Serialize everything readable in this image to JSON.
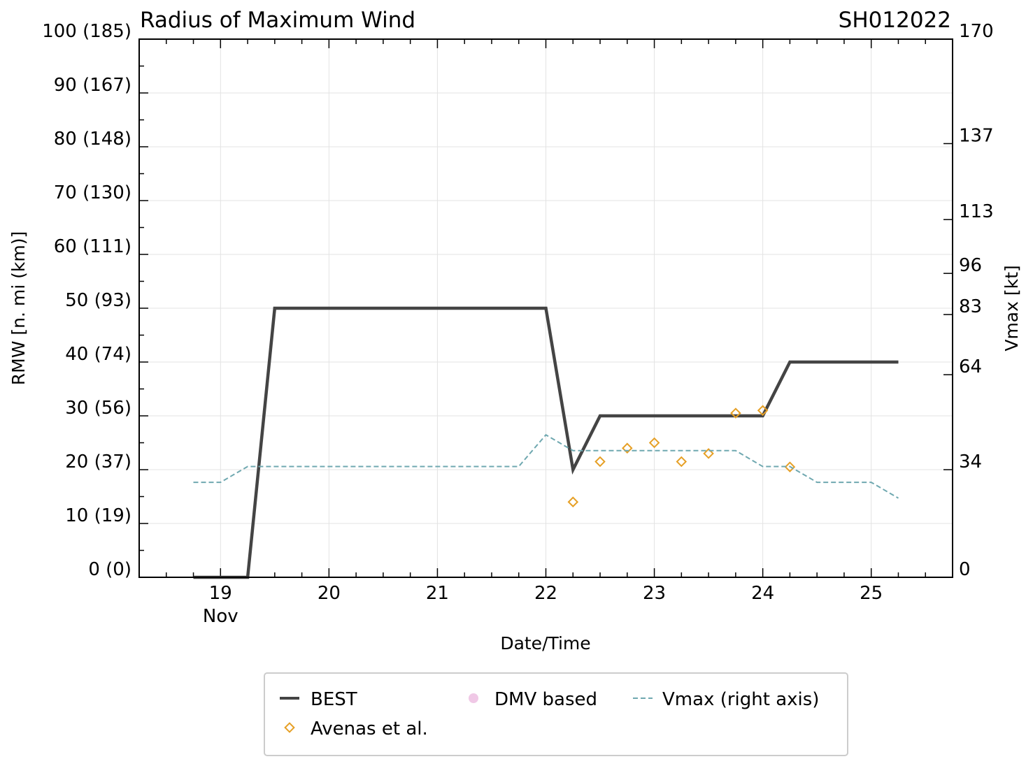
{
  "chart_data": {
    "type": "line",
    "title": "Radius of Maximum Wind",
    "storm_id": "SH012022",
    "xlabel": "Date/Time",
    "ylabel": "RMW [n. mi (km)]",
    "y2label": "Vmax [kt]",
    "x_range": [
      18.25,
      25.75
    ],
    "ylim": [
      0,
      100
    ],
    "y2lim": [
      0,
      170
    ],
    "x_ticks": [
      {
        "value": 19,
        "label": "19",
        "sublabel": "Nov"
      },
      {
        "value": 20,
        "label": "20",
        "sublabel": ""
      },
      {
        "value": 21,
        "label": "21",
        "sublabel": ""
      },
      {
        "value": 22,
        "label": "22",
        "sublabel": ""
      },
      {
        "value": 23,
        "label": "23",
        "sublabel": ""
      },
      {
        "value": 24,
        "label": "24",
        "sublabel": ""
      },
      {
        "value": 25,
        "label": "25",
        "sublabel": ""
      }
    ],
    "y_ticks": [
      {
        "value": 0,
        "label": "0 (0)"
      },
      {
        "value": 10,
        "label": "10 (19)"
      },
      {
        "value": 20,
        "label": "20 (37)"
      },
      {
        "value": 30,
        "label": "30 (56)"
      },
      {
        "value": 40,
        "label": "40 (74)"
      },
      {
        "value": 50,
        "label": "50 (93)"
      },
      {
        "value": 60,
        "label": "60 (111)"
      },
      {
        "value": 70,
        "label": "70 (130)"
      },
      {
        "value": 80,
        "label": "80 (148)"
      },
      {
        "value": 90,
        "label": "90 (167)"
      },
      {
        "value": 100,
        "label": "100 (185)"
      }
    ],
    "y2_ticks": [
      {
        "value": 0,
        "label": "0"
      },
      {
        "value": 34,
        "label": "34"
      },
      {
        "value": 64,
        "label": "64"
      },
      {
        "value": 83,
        "label": "83"
      },
      {
        "value": 96,
        "label": "96"
      },
      {
        "value": 113,
        "label": "113"
      },
      {
        "value": 137,
        "label": "137"
      },
      {
        "value": 170,
        "label": "170"
      }
    ],
    "series": [
      {
        "name": "BEST",
        "kind": "line",
        "color": "#444444",
        "x": [
          18.75,
          19.0,
          19.25,
          19.5,
          19.75,
          20.0,
          20.5,
          21.0,
          21.5,
          22.0,
          22.25,
          22.5,
          23.0,
          23.5,
          24.0,
          24.25,
          24.5,
          25.0,
          25.25
        ],
        "y": [
          0,
          0,
          0,
          50,
          50,
          50,
          50,
          50,
          50,
          50,
          20,
          30,
          30,
          30,
          30,
          40,
          40,
          40,
          40
        ]
      },
      {
        "name": "Avenas et al.",
        "kind": "scatter",
        "color": "#e69f24",
        "x": [
          22.25,
          22.5,
          22.75,
          23.0,
          23.25,
          23.5,
          23.75,
          24.0,
          24.25
        ],
        "y": [
          14,
          21.5,
          24,
          25,
          21.5,
          23,
          30.5,
          31,
          20.5
        ]
      },
      {
        "name": "DMV based",
        "kind": "scatter",
        "color": "#f0c8e6",
        "x": [],
        "y": []
      },
      {
        "name": "Vmax (right axis)",
        "kind": "line",
        "axis": "right",
        "color": "#6fa8b0",
        "x": [
          18.75,
          19.0,
          19.25,
          19.5,
          20.0,
          21.0,
          21.75,
          22.0,
          22.25,
          22.5,
          23.0,
          23.5,
          23.75,
          24.0,
          24.25,
          24.5,
          25.0,
          25.25
        ],
        "y": [
          30,
          30,
          35,
          35,
          35,
          35,
          35,
          45,
          40,
          40,
          40,
          40,
          40,
          35,
          35,
          30,
          30,
          25
        ]
      }
    ],
    "legend": {
      "placement": "bottom-center",
      "entries": [
        "BEST",
        "Avenas et al.",
        "DMV based",
        "Vmax (right axis)"
      ]
    }
  }
}
